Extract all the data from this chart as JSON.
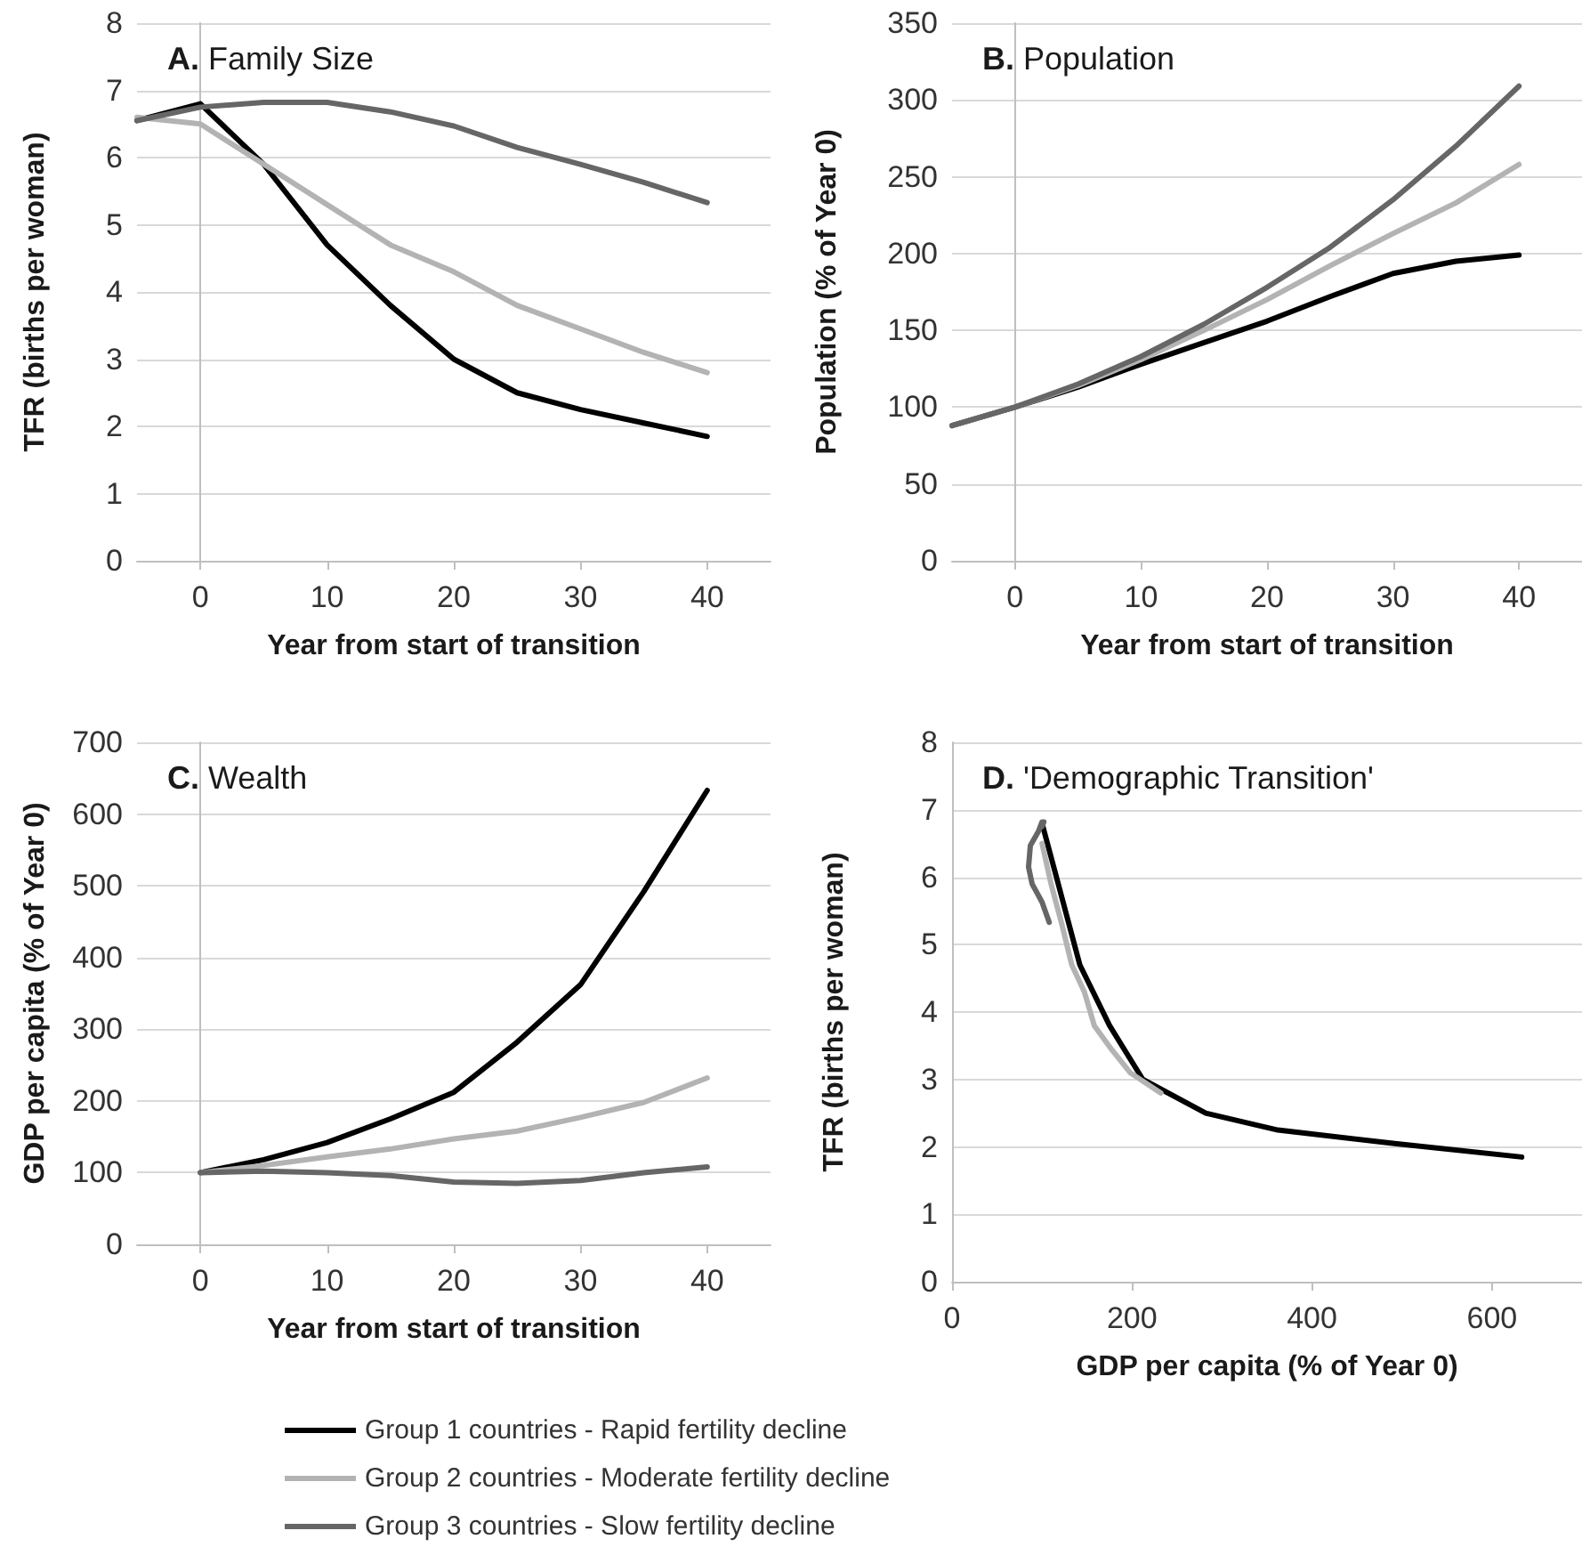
{
  "chart_data": [
    {
      "type": "line",
      "title": "A. Family Size",
      "xlabel": "Year from start of transition",
      "ylabel": "TFR (births per woman)",
      "x": [
        -5,
        0,
        5,
        10,
        15,
        20,
        25,
        30,
        35,
        40
      ],
      "xlim": [
        -5,
        45
      ],
      "xticks": [
        0,
        10,
        20,
        30,
        40
      ],
      "ylim": [
        0,
        8
      ],
      "yticks": [
        0,
        1,
        2,
        3,
        4,
        5,
        6,
        7,
        8
      ],
      "grid": "y",
      "marker": "none",
      "line_style": "solid",
      "legend": false,
      "series": [
        {
          "color": "#000000",
          "values": [
            6.55,
            6.8,
            5.9,
            4.7,
            3.8,
            3.0,
            2.5,
            2.25,
            2.05,
            1.85
          ]
        },
        {
          "color": "#b3b3b3",
          "values": [
            6.6,
            6.5,
            5.9,
            5.3,
            4.7,
            4.3,
            3.8,
            3.45,
            3.1,
            2.8
          ]
        },
        {
          "color": "#666666",
          "values": [
            6.55,
            6.75,
            6.82,
            6.82,
            6.68,
            6.47,
            6.15,
            5.9,
            5.63,
            5.33
          ]
        }
      ]
    },
    {
      "type": "line",
      "title": "B. Population",
      "xlabel": "Year from start of transition",
      "ylabel": "Population (% of Year 0)",
      "x": [
        -5,
        0,
        5,
        10,
        15,
        20,
        25,
        30,
        35,
        40
      ],
      "xlim": [
        -5,
        45
      ],
      "xticks": [
        0,
        10,
        20,
        30,
        40
      ],
      "ylim": [
        0,
        350
      ],
      "yticks": [
        0,
        50,
        100,
        150,
        200,
        250,
        300,
        350
      ],
      "grid": "y",
      "marker": "none",
      "line_style": "solid",
      "legend": false,
      "series": [
        {
          "color": "#000000",
          "values": [
            88,
            100,
            113,
            128,
            142,
            156,
            172,
            187,
            195,
            199
          ]
        },
        {
          "color": "#b3b3b3",
          "values": [
            88,
            100,
            114,
            131,
            150,
            170,
            192,
            213,
            233,
            258
          ]
        },
        {
          "color": "#666666",
          "values": [
            88,
            100,
            115,
            133,
            154,
            178,
            204,
            235,
            270,
            309
          ]
        }
      ]
    },
    {
      "type": "line",
      "title": "C. Wealth",
      "xlabel": "Year from start of transition",
      "ylabel": "GDP per capita (% of Year 0)",
      "x": [
        0,
        5,
        10,
        15,
        20,
        25,
        30,
        35,
        40
      ],
      "xlim": [
        -5,
        45
      ],
      "xticks": [
        0,
        10,
        20,
        30,
        40
      ],
      "ylim": [
        0,
        700
      ],
      "yticks": [
        0,
        100,
        200,
        300,
        400,
        500,
        600,
        700
      ],
      "grid": "y",
      "marker": "none",
      "line_style": "solid",
      "legend": false,
      "series": [
        {
          "color": "#000000",
          "values": [
            100,
            118,
            142,
            175,
            212,
            282,
            362,
            492,
            633
          ]
        },
        {
          "color": "#b3b3b3",
          "values": [
            100,
            110,
            122,
            133,
            147,
            158,
            177,
            198,
            232
          ]
        },
        {
          "color": "#666666",
          "values": [
            100,
            102,
            100,
            96,
            87,
            85,
            89,
            100,
            108
          ]
        }
      ]
    },
    {
      "type": "line",
      "title": "D. 'Demographic Transition'",
      "xlabel": "GDP per capita (% of Year 0)",
      "ylabel": "TFR (births per woman)",
      "xlim": [
        0,
        700
      ],
      "xticks": [
        0,
        200,
        400,
        600
      ],
      "ylim": [
        0,
        8
      ],
      "yticks": [
        0,
        1,
        2,
        3,
        4,
        5,
        6,
        7,
        8
      ],
      "grid": "y",
      "marker": "none",
      "line_style": "solid",
      "legend": "bottom",
      "series": [
        {
          "name": "Group 1 countries - Rapid fertility decline",
          "color": "#000000",
          "x": [
            100,
            118,
            142,
            175,
            212,
            282,
            362,
            492,
            633
          ],
          "values": [
            6.8,
            5.9,
            4.7,
            3.8,
            3.0,
            2.5,
            2.25,
            2.05,
            1.85
          ]
        },
        {
          "name": "Group 2 countries - Moderate fertility decline",
          "color": "#b3b3b3",
          "x": [
            100,
            110,
            122,
            133,
            147,
            158,
            177,
            198,
            232
          ],
          "values": [
            6.5,
            5.9,
            5.3,
            4.7,
            4.3,
            3.8,
            3.45,
            3.1,
            2.8
          ]
        },
        {
          "name": "Group 3 countries - Slow fertility decline",
          "color": "#666666",
          "x": [
            100,
            102,
            100,
            96,
            87,
            85,
            89,
            100,
            108
          ],
          "values": [
            6.75,
            6.82,
            6.82,
            6.68,
            6.47,
            6.15,
            5.9,
            5.63,
            5.33
          ]
        }
      ]
    }
  ]
}
